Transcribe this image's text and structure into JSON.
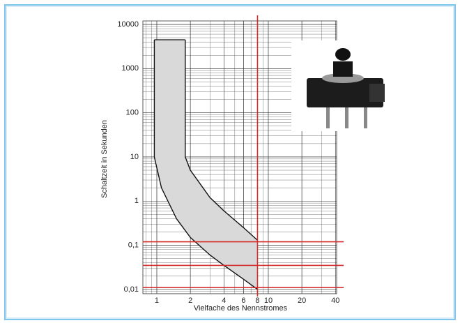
{
  "chart_data": {
    "type": "line",
    "xlabel": "Vielfache des Nennstromes",
    "ylabel": "Schaltzeit in Sekunden",
    "xscale": "log",
    "yscale": "log",
    "grid": true,
    "xlim": [
      0.75,
      41
    ],
    "ylim": [
      0.008,
      12000
    ],
    "xticks": [
      1,
      2,
      4,
      6,
      8,
      10,
      20,
      40
    ],
    "yticks": [
      {
        "value": 0.01,
        "label": "0,01"
      },
      {
        "value": 0.1,
        "label": "0,1"
      },
      1,
      10,
      100,
      1000,
      10000
    ],
    "band_color": "#d9d9d9",
    "series": [
      {
        "color": "#111111",
        "x": [
          1.8,
          1.8,
          2,
          3,
          4,
          6,
          8
        ],
        "values": [
          4500,
          10,
          5,
          1.2,
          0.6,
          0.25,
          0.13
        ]
      },
      {
        "color": "#111111",
        "x": [
          0.95,
          0.95,
          1.1,
          1.5,
          2,
          3,
          4,
          6,
          8
        ],
        "values": [
          4500,
          10,
          2,
          0.4,
          0.15,
          0.06,
          0.035,
          0.017,
          0.01
        ]
      }
    ],
    "reference_color": "#d42a2a",
    "vlines": [
      8
    ],
    "hlines": [
      0.12,
      0.035,
      0.011
    ]
  }
}
